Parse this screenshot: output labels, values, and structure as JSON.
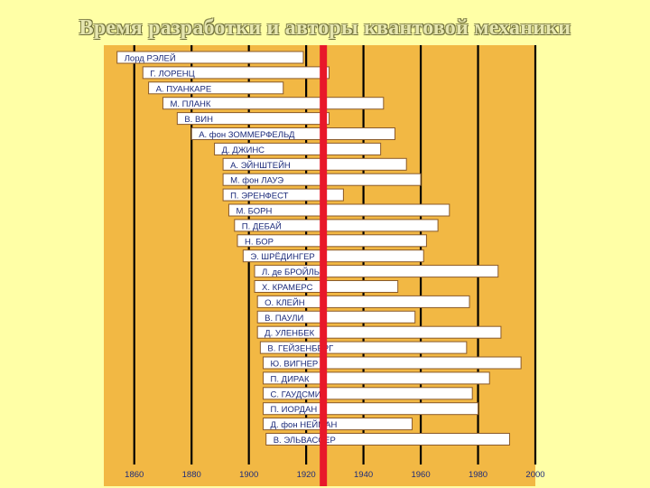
{
  "slide": {
    "title": "Время разработки и авторы квантовой механики"
  },
  "chart_data": {
    "type": "bar",
    "subtype": "timeline",
    "title": "Время разработки и авторы квантовой механики",
    "xlabel": "",
    "ylabel": "",
    "xlim": [
      1850,
      2000
    ],
    "grid": true,
    "marker_year": 1926,
    "colors": {
      "background": "#F2B844",
      "bar_fill": "#FFFFFF",
      "bar_stroke": "#8A5A2A",
      "grid": "#000000",
      "marker": "#E8182A",
      "text": "#1C2B7A"
    },
    "ticks": [
      1860,
      1880,
      1900,
      1920,
      1940,
      1960,
      1980,
      2000
    ],
    "people": [
      {
        "name": "Лорд РЭЛЕЙ",
        "start": 1854,
        "end": 1919
      },
      {
        "name": "Г. ЛОРЕНЦ",
        "start": 1863,
        "end": 1928
      },
      {
        "name": "А. ПУАНКАРЕ",
        "start": 1865,
        "end": 1912
      },
      {
        "name": "М. ПЛАНК",
        "start": 1870,
        "end": 1947
      },
      {
        "name": "В. ВИН",
        "start": 1875,
        "end": 1928
      },
      {
        "name": "А. фон ЗОММЕРФЕЛЬД",
        "start": 1880,
        "end": 1951
      },
      {
        "name": "Д. ДЖИНС",
        "start": 1888,
        "end": 1946
      },
      {
        "name": "А. ЭЙНШТЕЙН",
        "start": 1891,
        "end": 1955
      },
      {
        "name": "М. фон ЛАУЭ",
        "start": 1891,
        "end": 1960
      },
      {
        "name": "П. ЭРЕНФЕСТ",
        "start": 1891,
        "end": 1933
      },
      {
        "name": "М. БОРН",
        "start": 1893,
        "end": 1970
      },
      {
        "name": "П. ДЕБАЙ",
        "start": 1895,
        "end": 1966
      },
      {
        "name": "Н. БОР",
        "start": 1896,
        "end": 1962
      },
      {
        "name": "Э. ШРЁДИНГЕР",
        "start": 1898,
        "end": 1961
      },
      {
        "name": "Л. де БРОЙЛЬ",
        "start": 1902,
        "end": 1987
      },
      {
        "name": "Х. КРАМЕРС",
        "start": 1902,
        "end": 1952
      },
      {
        "name": "О. КЛЕЙН",
        "start": 1903,
        "end": 1977
      },
      {
        "name": "В. ПАУЛИ",
        "start": 1903,
        "end": 1958
      },
      {
        "name": "Д. УЛЕНБЕК",
        "start": 1903,
        "end": 1988
      },
      {
        "name": "В. ГЕЙЗЕНБЕРГ",
        "start": 1904,
        "end": 1976
      },
      {
        "name": "Ю. ВИГНЕР",
        "start": 1905,
        "end": 1995
      },
      {
        "name": "П. ДИРАК",
        "start": 1905,
        "end": 1984
      },
      {
        "name": "С. ГАУДСМИТ",
        "start": 1905,
        "end": 1978
      },
      {
        "name": "П. ИОРДАН",
        "start": 1905,
        "end": 1980
      },
      {
        "name": "Д. фон НЕЙМАН",
        "start": 1905,
        "end": 1957
      },
      {
        "name": "В. ЭЛЬВАССЕР",
        "start": 1906,
        "end": 1991
      }
    ]
  }
}
